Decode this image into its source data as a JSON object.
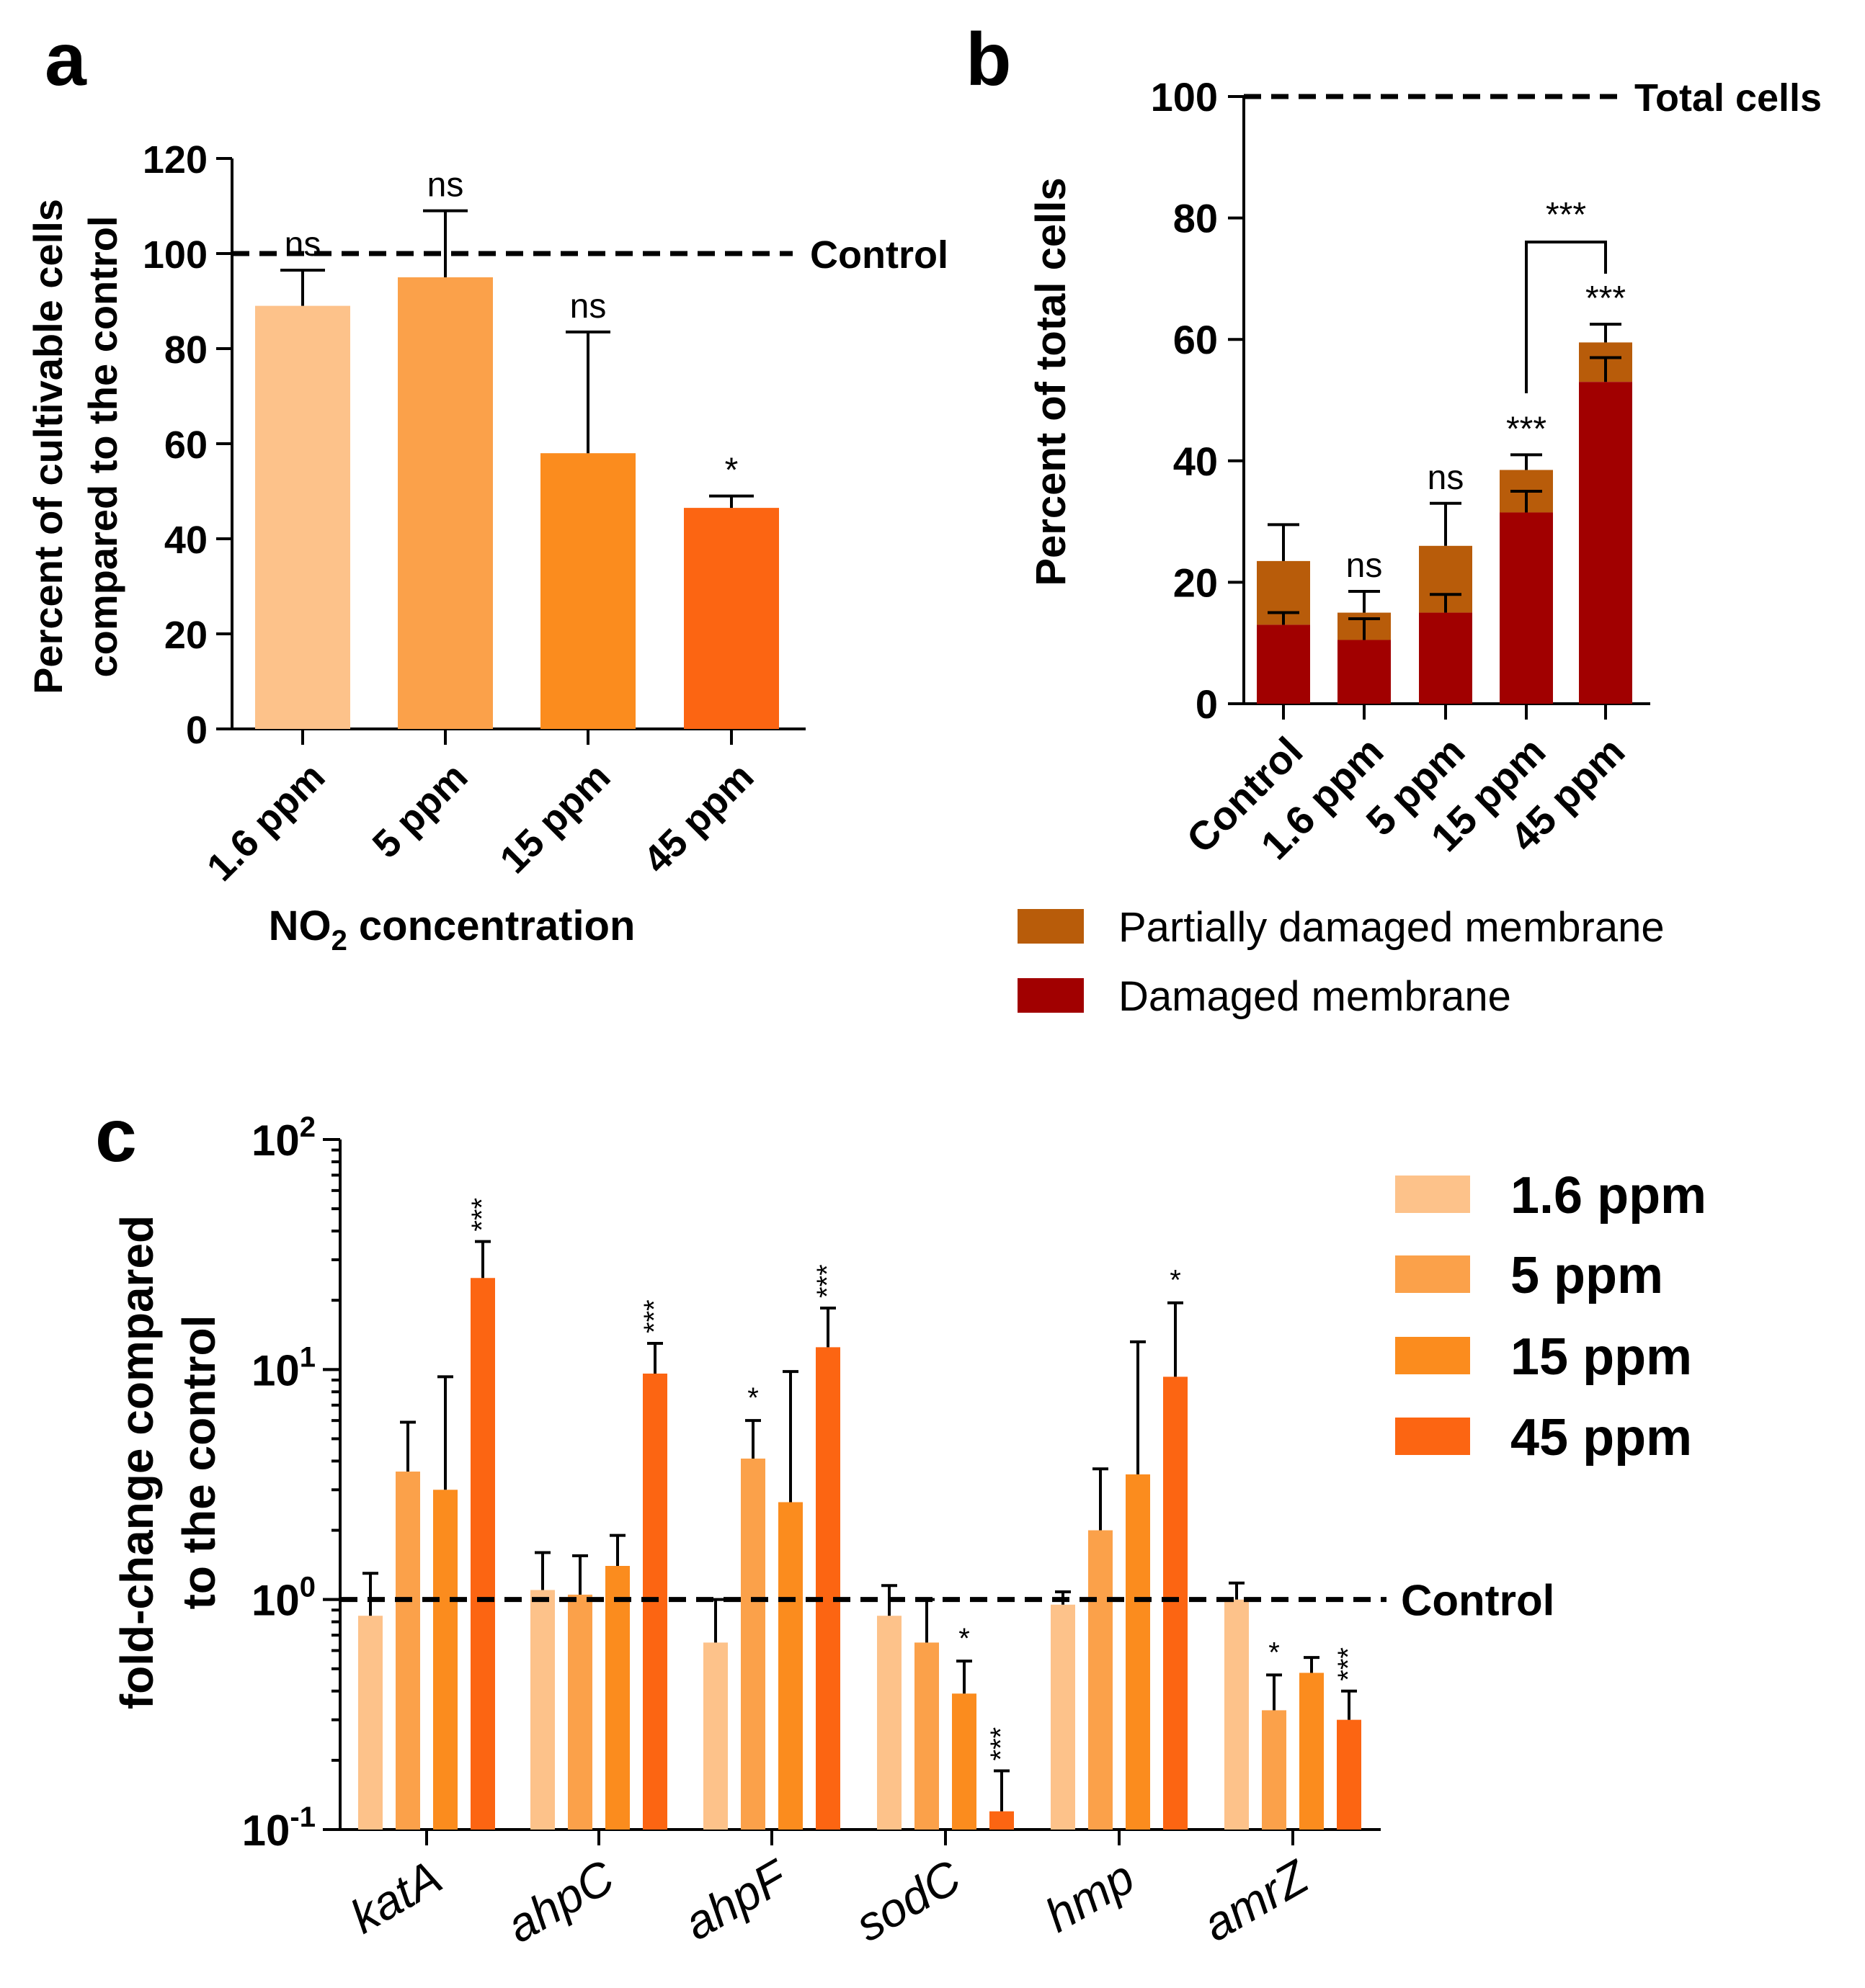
{
  "chart_data": [
    {
      "panel": "a",
      "type": "bar",
      "ylabel_line1": "Percent of cultivable cells",
      "ylabel_line2": "compared to the control",
      "xlabel_main": "NO",
      "xlabel_sub": "2",
      "xlabel_rest": " concentration",
      "ylim": [
        0,
        120
      ],
      "yticks": [
        "0",
        "20",
        "40",
        "60",
        "80",
        "100",
        "120"
      ],
      "categories": [
        "1.6 ppm",
        "5 ppm",
        "15 ppm",
        "45 ppm"
      ],
      "values": [
        89,
        95,
        58,
        46.5
      ],
      "errors": [
        7.5,
        14,
        25.5,
        2.5
      ],
      "significance": [
        "ns",
        "ns",
        "ns",
        "*"
      ],
      "colors": [
        "#FDC28A",
        "#FBA14A",
        "#FB8C1E",
        "#FC6512"
      ],
      "reference": {
        "value": 100,
        "label": "Control"
      }
    },
    {
      "panel": "b",
      "type": "stacked-bar",
      "ylabel": "Percent of total cells",
      "ylim": [
        0,
        100
      ],
      "yticks": [
        "0",
        "20",
        "40",
        "60",
        "80",
        "100"
      ],
      "categories": [
        "Control",
        "1.6 ppm",
        "5 ppm",
        "15 ppm",
        "45 ppm"
      ],
      "series": [
        {
          "name": "Damaged membrane",
          "color": "#A10000",
          "values": [
            13,
            10.5,
            15,
            31.5,
            53
          ],
          "errors": [
            2,
            3.5,
            3,
            3.5,
            4
          ]
        },
        {
          "name": "Partially damaged membrane",
          "color": "#B85C0A",
          "totals": [
            23.5,
            15,
            26,
            38.5,
            59.5
          ],
          "errors": [
            6,
            3.5,
            7,
            2.5,
            3
          ]
        }
      ],
      "significance": [
        "",
        "ns",
        "ns",
        "***",
        "***"
      ],
      "bracket": {
        "from": "15 ppm",
        "to": "45 ppm",
        "label": "***"
      },
      "reference": {
        "value": 100,
        "label": "Total cells"
      }
    },
    {
      "panel": "c",
      "type": "bar",
      "yscale": "log",
      "ylabel_line1": "fold-change compared",
      "ylabel_line2": "to the control",
      "ylim": [
        0.1,
        100
      ],
      "ytick_labels": [
        {
          "base": "10",
          "exp": "-1"
        },
        {
          "base": "10",
          "exp": "0"
        },
        {
          "base": "10",
          "exp": "1"
        },
        {
          "base": "10",
          "exp": "2"
        }
      ],
      "categories": [
        "katA",
        "ahpC",
        "ahpF",
        "sodC",
        "hmp",
        "amrZ"
      ],
      "series": [
        {
          "name": "1.6 ppm",
          "color": "#FDC28A",
          "values": [
            0.85,
            1.1,
            0.65,
            0.85,
            0.95,
            1.0
          ],
          "err_upper": [
            1.3,
            1.6,
            1.0,
            1.15,
            1.08,
            1.18
          ]
        },
        {
          "name": "5 ppm",
          "color": "#FBA14A",
          "values": [
            3.6,
            1.05,
            4.1,
            0.65,
            2.0,
            0.33
          ],
          "err_upper": [
            5.9,
            1.55,
            6.0,
            1.0,
            3.7,
            0.47
          ]
        },
        {
          "name": "15 ppm",
          "color": "#FB8C1E",
          "values": [
            3.0,
            1.4,
            2.65,
            0.39,
            3.5,
            0.48
          ],
          "err_upper": [
            9.3,
            1.9,
            9.8,
            0.54,
            13.2,
            0.56
          ]
        },
        {
          "name": "45 ppm",
          "color": "#FC6512",
          "values": [
            25,
            9.6,
            12.5,
            0.12,
            9.3,
            0.3
          ],
          "err_upper": [
            36,
            13,
            18.5,
            0.18,
            19.5,
            0.4
          ]
        }
      ],
      "significance": [
        [
          "",
          "",
          "",
          "***"
        ],
        [
          "",
          "",
          "",
          "***"
        ],
        [
          "",
          "*",
          "",
          "***"
        ],
        [
          "",
          "",
          "*",
          "***"
        ],
        [
          "",
          "",
          "",
          "*"
        ],
        [
          "",
          "*",
          "",
          "***"
        ]
      ],
      "reference": {
        "value": 1,
        "label": "Control"
      }
    }
  ],
  "panel_labels": {
    "a": "a",
    "b": "b",
    "c": "c"
  }
}
